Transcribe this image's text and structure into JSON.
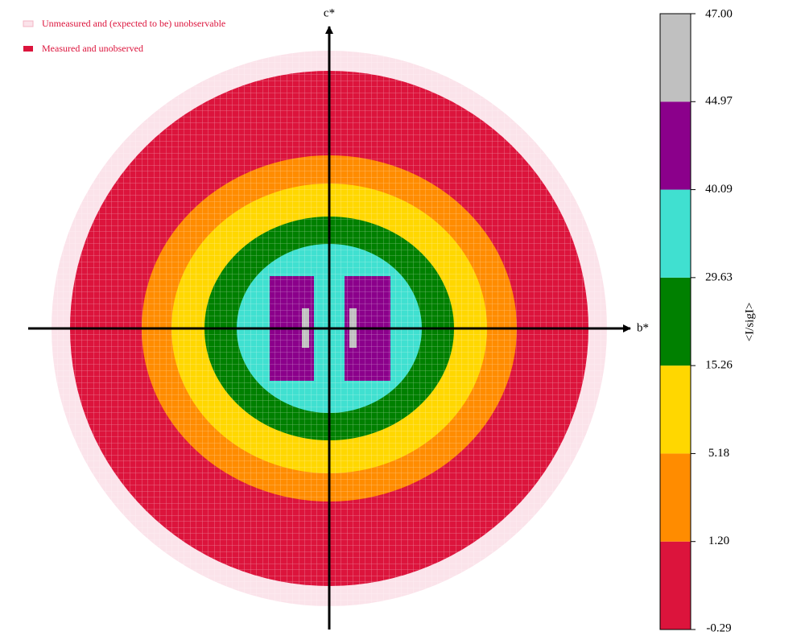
{
  "chart_data": {
    "type": "reciprocal-slice",
    "x_label": "b*",
    "y_label": "c*",
    "legend": [
      {
        "name": "Unmeasured and (expected to be) unobservable",
        "color": "#fbe3ea"
      },
      {
        "name": "Measured and unobserved",
        "color": "#dc143c"
      }
    ],
    "colorbar": {
      "label": "<I/sigI>",
      "ticks": [
        -0.29,
        {
          "value": 1.2,
          "label": "1.20"
        },
        5.18,
        15.26,
        29.63,
        40.09,
        44.97,
        {
          "value": 47,
          "label": "47.00"
        }
      ],
      "colors": [
        "#dc143c",
        "#ff8c00",
        "#ffd700",
        "#008000",
        "#40e0d0",
        "#8b008b",
        "#c0c0c0"
      ]
    }
  }
}
